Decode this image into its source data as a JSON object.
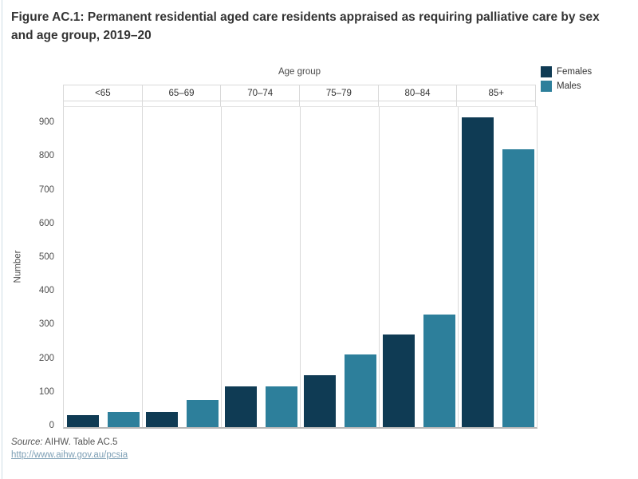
{
  "title": "Figure AC.1: Permanent residential aged care residents appraised as requiring palliative care by sex and age group, 2019–20",
  "legend": {
    "items": [
      {
        "label": "Females",
        "color": "#0f3b54"
      },
      {
        "label": "Males",
        "color": "#2d7f9b"
      }
    ]
  },
  "chart_data": {
    "type": "bar",
    "title": "Figure AC.1: Permanent residential aged care residents appraised as requiring palliative care by sex and age group, 2019–20",
    "x_axis_label": "Age group",
    "ylabel": "Number",
    "categories": [
      "<65",
      "65–69",
      "70–74",
      "75–79",
      "80–84",
      "85+"
    ],
    "series": [
      {
        "name": "Females",
        "color": "#0f3b54",
        "values": [
          35,
          45,
          120,
          155,
          275,
          920
        ]
      },
      {
        "name": "Males",
        "color": "#2d7f9b",
        "values": [
          45,
          80,
          120,
          215,
          335,
          825
        ]
      }
    ],
    "ylim": [
      0,
      950
    ],
    "yticks": [
      0,
      100,
      200,
      300,
      400,
      500,
      600,
      700,
      800,
      900
    ],
    "grid": false,
    "legend_position": "top-right"
  },
  "footer": {
    "source_prefix": "Source:",
    "source_text": " AIHW. Table AC.5",
    "link_text": "http://www.aihw.gov.au/pcsia"
  }
}
